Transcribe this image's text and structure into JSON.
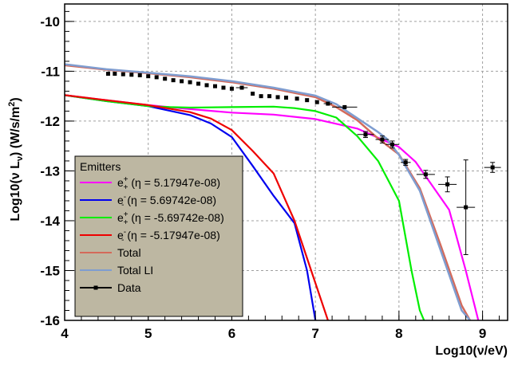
{
  "chart_data": {
    "type": "line",
    "title": "",
    "xlabel": "Log10(ν/eV)",
    "ylabel": "Log10(ν L",
    "ylabel_sub": "ν",
    "ylabel_unit": ") (W/s/m",
    "ylabel_sup": "2",
    "ylabel_end": ")",
    "xlim": [
      4,
      9.3
    ],
    "ylim": [
      -16,
      -9.65
    ],
    "xticks": [
      4,
      5,
      6,
      7,
      8,
      9
    ],
    "yticks": [
      -16,
      -15,
      -14,
      -13,
      -12,
      -11,
      -10
    ],
    "grid": true,
    "legend": {
      "title": "Emitters",
      "placement": "bottom-left",
      "background": "#bdb7a2",
      "entries": [
        {
          "label_base": "e",
          "label_sup": "+",
          "label_sub": "+",
          "label_rest": " (η = 5.17947e-08)",
          "series": 0
        },
        {
          "label_base": "e",
          "label_sup": "-",
          "label_sub": "-",
          "label_rest": " (η = 5.69742e-08)",
          "series": 1
        },
        {
          "label_base": "e",
          "label_sup": "+",
          "label_sub": "+",
          "label_rest": " (η = -5.69742e-08)",
          "series": 2
        },
        {
          "label_base": "e",
          "label_sup": "-",
          "label_sub": "-",
          "label_rest": " (η = -5.17947e-08)",
          "series": 3
        },
        {
          "label": "Total",
          "series": 4
        },
        {
          "label": "Total LI",
          "series": 5
        },
        {
          "label": "Data",
          "series": "data"
        }
      ]
    },
    "series": [
      {
        "color": "#ff00ff",
        "x": [
          4.0,
          4.5,
          5.0,
          5.5,
          6.0,
          6.5,
          7.0,
          7.5,
          7.8,
          8.0,
          8.2,
          8.4,
          8.6,
          8.8,
          8.95
        ],
        "y": [
          -11.48,
          -11.58,
          -11.68,
          -11.76,
          -11.83,
          -11.87,
          -11.96,
          -12.15,
          -12.37,
          -12.52,
          -12.82,
          -13.3,
          -13.78,
          -15.0,
          -16.0
        ]
      },
      {
        "color": "#0000ee",
        "x": [
          4.0,
          4.5,
          5.0,
          5.5,
          5.75,
          6.0,
          6.25,
          6.5,
          6.75,
          6.9,
          7.0
        ],
        "y": [
          -11.48,
          -11.6,
          -11.7,
          -11.88,
          -12.05,
          -12.32,
          -12.9,
          -13.5,
          -14.05,
          -15.0,
          -16.0
        ]
      },
      {
        "color": "#00ee00",
        "x": [
          4.0,
          4.5,
          5.0,
          5.25,
          5.5,
          6.0,
          6.5,
          6.75,
          7.0,
          7.25,
          7.5,
          7.75,
          8.0,
          8.15,
          8.25,
          8.3
        ],
        "y": [
          -11.48,
          -11.6,
          -11.7,
          -11.72,
          -11.73,
          -11.72,
          -11.71,
          -11.74,
          -11.8,
          -11.93,
          -12.3,
          -12.8,
          -13.6,
          -15.0,
          -15.8,
          -16.0
        ]
      },
      {
        "color": "#ee0000",
        "x": [
          4.0,
          4.5,
          5.0,
          5.5,
          5.75,
          6.0,
          6.25,
          6.5,
          6.75,
          6.95,
          7.15
        ],
        "y": [
          -11.48,
          -11.58,
          -11.68,
          -11.82,
          -11.95,
          -12.18,
          -12.6,
          -13.05,
          -14.0,
          -15.0,
          -16.0
        ]
      },
      {
        "color": "#d46a5a",
        "x": [
          4.0,
          4.5,
          5.0,
          5.5,
          6.0,
          6.5,
          7.0,
          7.25,
          7.5,
          7.75,
          8.0,
          8.25,
          8.5,
          8.75,
          8.85
        ],
        "y": [
          -10.88,
          -10.97,
          -11.04,
          -11.12,
          -11.22,
          -11.35,
          -11.52,
          -11.72,
          -11.98,
          -12.35,
          -12.67,
          -13.35,
          -14.5,
          -15.7,
          -16.0
        ]
      },
      {
        "color": "#7f9dd0",
        "x": [
          4.0,
          4.5,
          5.0,
          5.5,
          6.0,
          6.5,
          7.0,
          7.25,
          7.5,
          7.75,
          7.85,
          8.0,
          8.25,
          8.5,
          8.75,
          8.85
        ],
        "y": [
          -10.86,
          -10.96,
          -11.03,
          -11.1,
          -11.2,
          -11.33,
          -11.49,
          -11.66,
          -11.94,
          -12.22,
          -12.35,
          -12.68,
          -13.4,
          -14.6,
          -15.8,
          -16.0
        ]
      }
    ],
    "data_series": {
      "color": "#000000",
      "points": [
        {
          "x": 4.52,
          "y": -11.05,
          "xerr": 0,
          "yerr": 0
        },
        {
          "x": 4.6,
          "y": -11.05,
          "xerr": 0,
          "yerr": 0
        },
        {
          "x": 4.7,
          "y": -11.06,
          "xerr": 0,
          "yerr": 0
        },
        {
          "x": 4.8,
          "y": -11.07,
          "xerr": 0,
          "yerr": 0
        },
        {
          "x": 4.9,
          "y": -11.08,
          "xerr": 0,
          "yerr": 0
        },
        {
          "x": 5.0,
          "y": -11.1,
          "xerr": 0,
          "yerr": 0
        },
        {
          "x": 5.1,
          "y": -11.12,
          "xerr": 0,
          "yerr": 0
        },
        {
          "x": 5.2,
          "y": -11.15,
          "xerr": 0,
          "yerr": 0
        },
        {
          "x": 5.3,
          "y": -11.18,
          "xerr": 0,
          "yerr": 0
        },
        {
          "x": 5.4,
          "y": -11.2,
          "xerr": 0,
          "yerr": 0
        },
        {
          "x": 5.5,
          "y": -11.22,
          "xerr": 0,
          "yerr": 0
        },
        {
          "x": 5.6,
          "y": -11.25,
          "xerr": 0,
          "yerr": 0
        },
        {
          "x": 5.7,
          "y": -11.28,
          "xerr": 0,
          "yerr": 0
        },
        {
          "x": 5.8,
          "y": -11.3,
          "xerr": 0,
          "yerr": 0
        },
        {
          "x": 5.9,
          "y": -11.33,
          "xerr": 0,
          "yerr": 0
        },
        {
          "x": 6.0,
          "y": -11.35,
          "xerr": 0,
          "yerr": 0
        },
        {
          "x": 6.12,
          "y": -11.33,
          "xerr": 0.07,
          "yerr": 0
        },
        {
          "x": 6.25,
          "y": -11.45,
          "xerr": 0,
          "yerr": 0
        },
        {
          "x": 6.35,
          "y": -11.5,
          "xerr": 0,
          "yerr": 0
        },
        {
          "x": 6.45,
          "y": -11.5,
          "xerr": 0,
          "yerr": 0
        },
        {
          "x": 6.55,
          "y": -11.52,
          "xerr": 0,
          "yerr": 0
        },
        {
          "x": 6.65,
          "y": -11.53,
          "xerr": 0,
          "yerr": 0
        },
        {
          "x": 6.78,
          "y": -11.55,
          "xerr": 0,
          "yerr": 0
        },
        {
          "x": 6.9,
          "y": -11.58,
          "xerr": 0,
          "yerr": 0
        },
        {
          "x": 7.02,
          "y": -11.62,
          "xerr": 0,
          "yerr": 0
        },
        {
          "x": 7.15,
          "y": -11.65,
          "xerr": 0.05,
          "yerr": 0
        },
        {
          "x": 7.35,
          "y": -11.72,
          "xerr": 0.15,
          "yerr": 0
        },
        {
          "x": 7.6,
          "y": -12.27,
          "xerr": 0.1,
          "yerr": 0.06
        },
        {
          "x": 7.8,
          "y": -12.37,
          "xerr": 0.08,
          "yerr": 0.07
        },
        {
          "x": 7.92,
          "y": -12.47,
          "xerr": 0.08,
          "yerr": 0.07
        },
        {
          "x": 8.08,
          "y": -12.83,
          "xerr": 0.06,
          "yerr": 0.06
        },
        {
          "x": 8.32,
          "y": -13.07,
          "xerr": 0.11,
          "yerr": 0.08
        },
        {
          "x": 8.58,
          "y": -13.27,
          "xerr": 0.11,
          "yerr": 0.15
        },
        {
          "x": 8.8,
          "y": -13.73,
          "xerr": 0.11,
          "yerr": 0.95
        },
        {
          "x": 9.12,
          "y": -12.93,
          "xerr": 0.1,
          "yerr": 0.1
        }
      ]
    }
  }
}
